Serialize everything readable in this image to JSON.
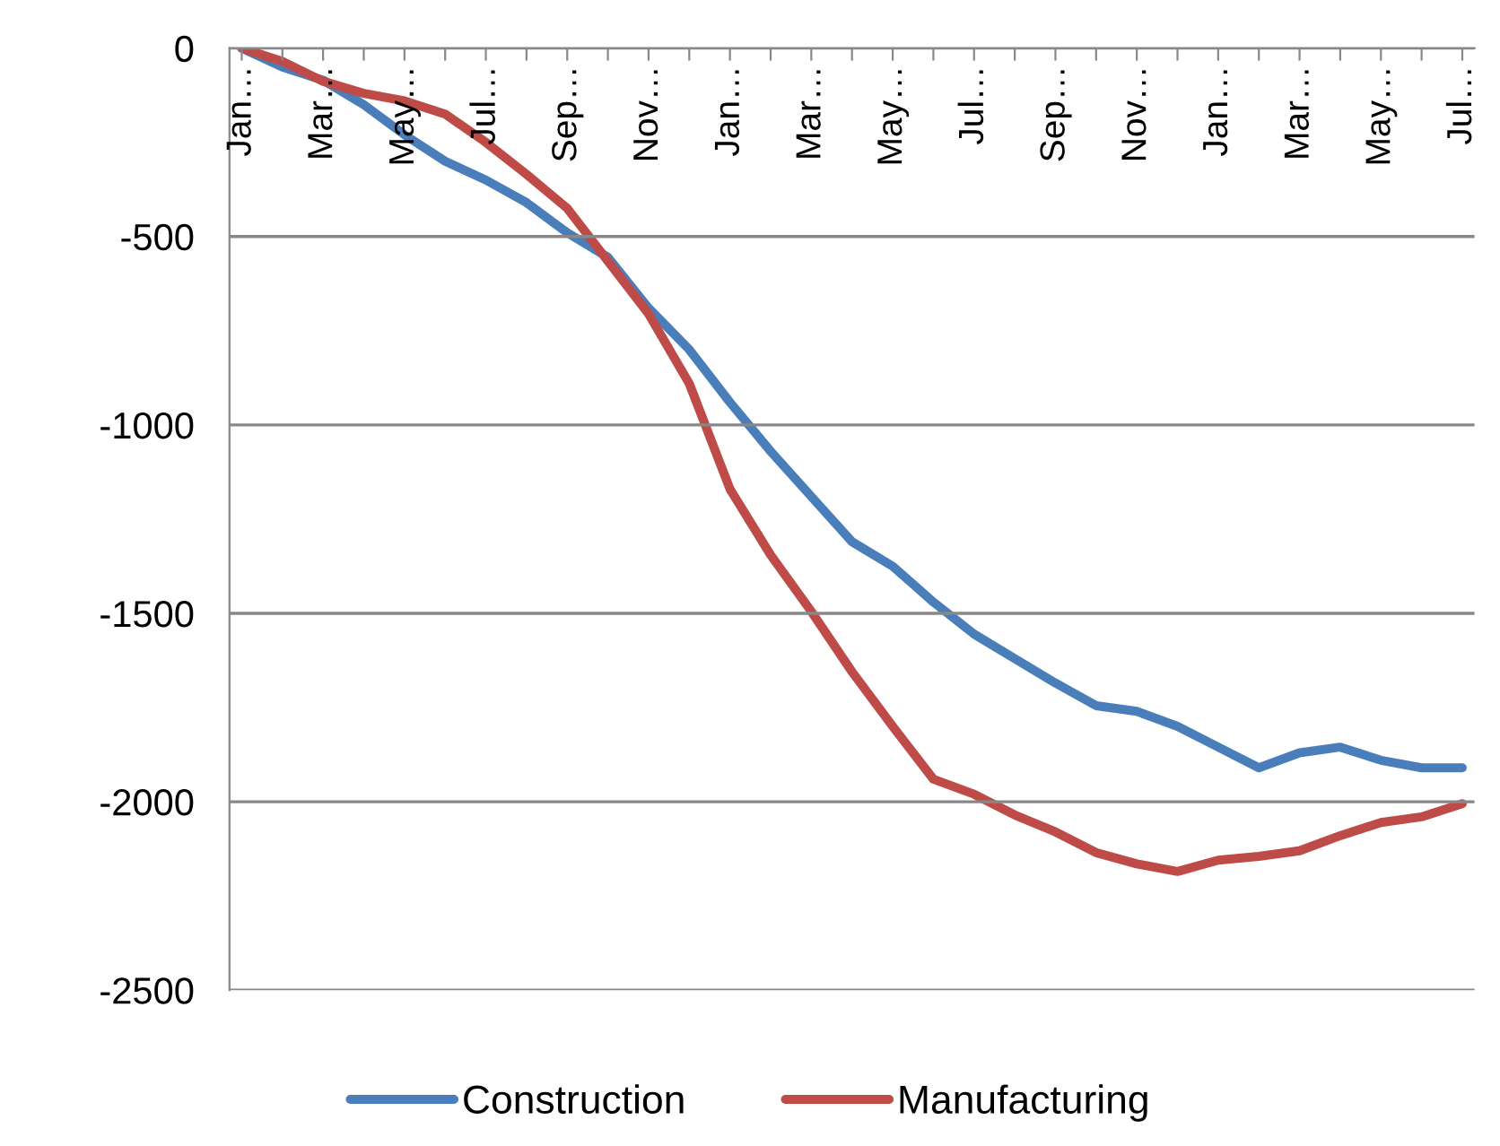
{
  "chart_data": {
    "type": "line",
    "categories": [
      "Jan…",
      null,
      "Mar…",
      null,
      "May…",
      null,
      "Jul…",
      null,
      "Sep…",
      null,
      "Nov…",
      null,
      "Jan…",
      null,
      "Mar…",
      null,
      "May…",
      null,
      "Jul…",
      null,
      "Sep…",
      null,
      "Nov…",
      null,
      "Jan…",
      null,
      "Mar…",
      null,
      "May…",
      null,
      "Jul…"
    ],
    "series": [
      {
        "name": "Construction",
        "color": "#4a7ebb",
        "values": [
          0,
          -50,
          -85,
          -150,
          -230,
          -300,
          -350,
          -410,
          -490,
          -555,
          -690,
          -800,
          -940,
          -1070,
          -1190,
          -1310,
          -1375,
          -1470,
          -1555,
          -1620,
          -1685,
          -1745,
          -1760,
          -1800,
          -1855,
          -1910,
          -1870,
          -1855,
          -1890,
          -1910,
          -1910
        ]
      },
      {
        "name": "Manufacturing",
        "color": "#be4b48",
        "values": [
          0,
          -35,
          -88,
          -120,
          -140,
          -175,
          -250,
          -335,
          -425,
          -565,
          -705,
          -890,
          -1170,
          -1345,
          -1495,
          -1655,
          -1800,
          -1940,
          -1980,
          -2035,
          -2080,
          -2135,
          -2165,
          -2185,
          -2155,
          -2145,
          -2130,
          -2090,
          -2055,
          -2040,
          -2005
        ]
      }
    ],
    "ylim": [
      -2500,
      0
    ],
    "yticks": [
      -2500,
      -2000,
      -1500,
      -1000,
      -500,
      0
    ],
    "grid": "y",
    "legend": "bottom",
    "marker": "none",
    "line_style": "solid"
  }
}
